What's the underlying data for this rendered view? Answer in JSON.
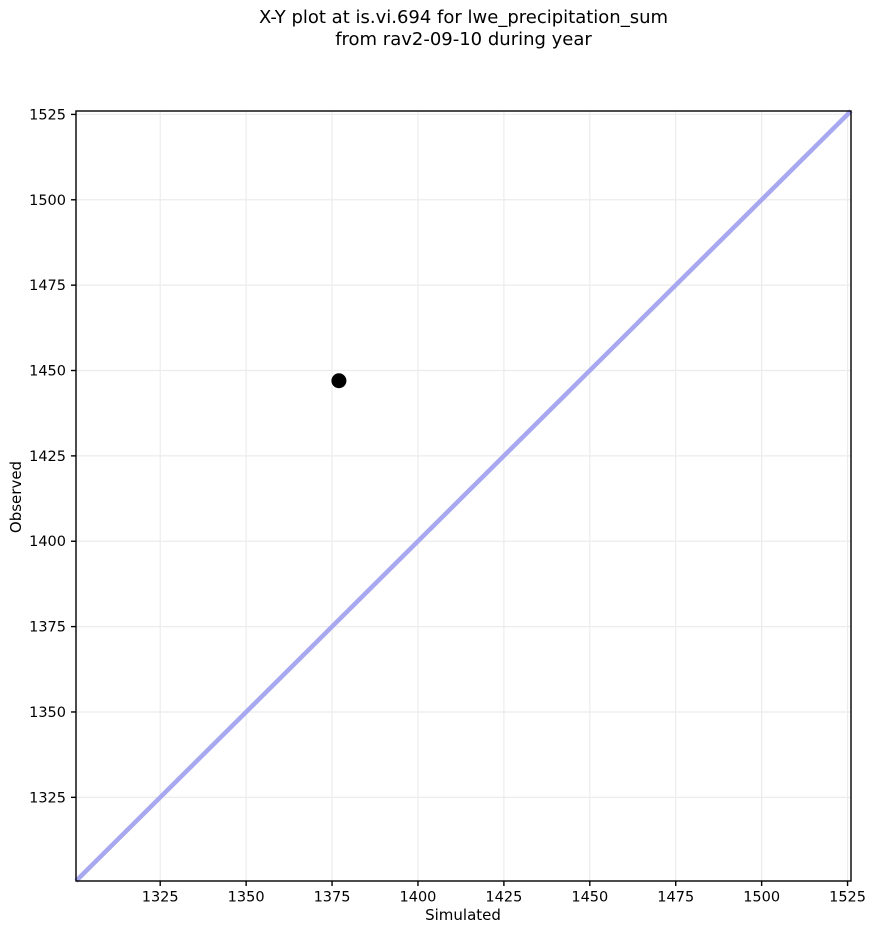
{
  "figure": {
    "title_line1": "X-Y plot at is.vi.694 for lwe_precipitation_sum",
    "title_line2": "from rav2-09-10 during year",
    "xlabel": "Simulated",
    "ylabel": "Observed"
  },
  "chart_data": {
    "type": "scatter",
    "title": "X-Y plot at is.vi.694 for lwe_precipitation_sum from rav2-09-10 during year",
    "xlabel": "Simulated",
    "ylabel": "Observed",
    "xlim": [
      1300.5,
      1526
    ],
    "ylim": [
      1300.5,
      1526
    ],
    "xticks": [
      1325,
      1350,
      1375,
      1400,
      1425,
      1450,
      1475,
      1500,
      1525
    ],
    "yticks": [
      1325,
      1350,
      1375,
      1400,
      1425,
      1450,
      1475,
      1500,
      1525
    ],
    "grid": true,
    "legend": false,
    "points": [
      {
        "x": 1377,
        "y": 1447
      }
    ],
    "identity_line": {
      "x0": 1300.5,
      "y0": 1300.5,
      "x1": 1526,
      "y1": 1526
    },
    "style": {
      "background": "#ffffff",
      "line_color": "#a7a8f0",
      "line_width": 4.5,
      "point_color": "#000000",
      "point_radius": 7.5,
      "grid_color": "#ececec",
      "grid_width": 1.2,
      "spine_color": "#000000",
      "spine_width": 1.4,
      "tick_color": "#000000",
      "tick_length": 5
    }
  }
}
